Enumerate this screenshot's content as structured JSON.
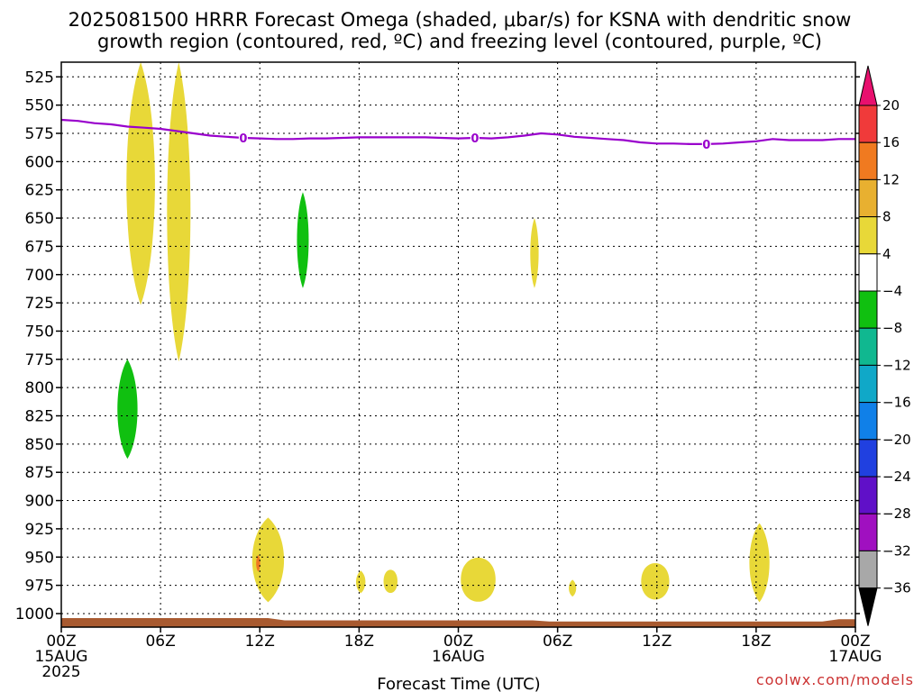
{
  "chart_data": {
    "type": "heatmap",
    "title_line1": "2025081500 HRRR Forecast Omega (shaded, μbar/s) for KSNA with dendritic snow",
    "title_line2": "growth region (contoured, red, ºC) and freezing level (contoured, purple, ºC)",
    "xlabel": "Forecast Time (UTC)",
    "credit": "coolwx.com/models",
    "y_axis": {
      "reversed": true,
      "ylim": [
        1012,
        512
      ],
      "ticks": [
        525,
        550,
        575,
        600,
        625,
        650,
        675,
        700,
        725,
        750,
        775,
        800,
        825,
        850,
        875,
        900,
        925,
        950,
        975,
        1000
      ]
    },
    "x_axis": {
      "xlim": [
        0,
        48
      ],
      "ticks": [
        {
          "hour": 0,
          "line1": "00Z",
          "line2": "15AUG",
          "line3": "2025"
        },
        {
          "hour": 6,
          "line1": "06Z",
          "line2": "",
          "line3": ""
        },
        {
          "hour": 12,
          "line1": "12Z",
          "line2": "",
          "line3": ""
        },
        {
          "hour": 18,
          "line1": "18Z",
          "line2": "",
          "line3": ""
        },
        {
          "hour": 24,
          "line1": "00Z",
          "line2": "16AUG",
          "line3": ""
        },
        {
          "hour": 30,
          "line1": "06Z",
          "line2": "",
          "line3": ""
        },
        {
          "hour": 36,
          "line1": "12Z",
          "line2": "",
          "line3": ""
        },
        {
          "hour": 42,
          "line1": "18Z",
          "line2": "",
          "line3": ""
        },
        {
          "hour": 48,
          "line1": "00Z",
          "line2": "17AUG",
          "line3": ""
        }
      ]
    },
    "grid": true,
    "colorbar": {
      "labels": [
        "20",
        "16",
        "12",
        "8",
        "4",
        "−4",
        "−8",
        "−12",
        "−16",
        "−20",
        "−24",
        "−28",
        "−32",
        "−36"
      ],
      "colors": [
        "#e8106e",
        "#f03a3a",
        "#f07a20",
        "#e8b030",
        "#e8d838",
        "#ffffff",
        "#10c010",
        "#10b890",
        "#10a8c8",
        "#1080e8",
        "#2040e0",
        "#6010c8",
        "#a010c0",
        "#a8a8a8"
      ]
    },
    "freezing_level": {
      "color": "#9900cc",
      "label": "0",
      "points": [
        [
          0,
          563
        ],
        [
          1,
          564
        ],
        [
          2,
          566
        ],
        [
          3,
          567
        ],
        [
          4,
          569
        ],
        [
          5,
          570
        ],
        [
          6,
          571
        ],
        [
          7,
          573
        ],
        [
          8,
          575
        ],
        [
          9,
          577
        ],
        [
          10,
          578
        ],
        [
          11,
          579
        ],
        [
          12,
          579.5
        ],
        [
          13,
          580
        ],
        [
          14,
          580
        ],
        [
          15,
          579.5
        ],
        [
          16,
          579.5
        ],
        [
          17,
          579
        ],
        [
          18,
          578.5
        ],
        [
          19,
          578.5
        ],
        [
          20,
          578.5
        ],
        [
          21,
          578.5
        ],
        [
          22,
          578.5
        ],
        [
          23,
          579
        ],
        [
          24,
          579.5
        ],
        [
          25,
          579
        ],
        [
          26,
          579.5
        ],
        [
          27,
          578.5
        ],
        [
          28,
          577
        ],
        [
          29,
          575
        ],
        [
          30,
          576
        ],
        [
          31,
          578
        ],
        [
          32,
          579
        ],
        [
          33,
          580
        ],
        [
          34,
          581
        ],
        [
          35,
          583
        ],
        [
          36,
          584
        ],
        [
          37,
          584
        ],
        [
          38,
          584.5
        ],
        [
          39,
          584.5
        ],
        [
          40,
          584
        ],
        [
          41,
          583
        ],
        [
          42,
          582
        ],
        [
          43,
          580
        ],
        [
          44,
          581
        ],
        [
          45,
          581
        ],
        [
          46,
          581
        ],
        [
          47,
          580
        ],
        [
          48,
          580
        ]
      ],
      "label_hours": [
        11,
        25,
        39
      ]
    },
    "omega_regions": [
      {
        "sign": "positive",
        "level": "4 to 8",
        "color": "#e8d838",
        "center_hour": 4.8,
        "top_hpa": 512,
        "bottom_hpa": 727,
        "half_width_hours": 0.85
      },
      {
        "sign": "positive",
        "level": "4 to 8",
        "color": "#e8d838",
        "center_hour": 7.1,
        "top_hpa": 512,
        "bottom_hpa": 777,
        "half_width_hours": 0.7
      },
      {
        "sign": "negative",
        "level": "-4 to -8",
        "color": "#10c010",
        "center_hour": 4.0,
        "top_hpa": 775,
        "bottom_hpa": 863,
        "half_width_hours": 0.6
      },
      {
        "sign": "negative",
        "level": "-4 to -8",
        "color": "#10c010",
        "center_hour": 14.6,
        "top_hpa": 627,
        "bottom_hpa": 712,
        "half_width_hours": 0.35
      },
      {
        "sign": "positive",
        "level": "4 to 8",
        "color": "#e8d838",
        "center_hour": 28.6,
        "top_hpa": 650,
        "bottom_hpa": 712,
        "half_width_hours": 0.25
      },
      {
        "sign": "positive",
        "level": "4 to 8",
        "color": "#e8d838",
        "center_hour": 12.5,
        "top_hpa": 915,
        "bottom_hpa": 990,
        "half_width_hours": 0.95
      },
      {
        "sign": "positive",
        "level": "8 to 12",
        "color": "#f07a20",
        "center_hour": 11.9,
        "top_hpa": 948,
        "bottom_hpa": 963,
        "half_width_hours": 0.12
      },
      {
        "sign": "positive",
        "level": "4 to 8",
        "color": "#e8d838",
        "center_hour": 18.1,
        "top_hpa": 962,
        "bottom_hpa": 982,
        "half_width_hours": 0.28
      },
      {
        "sign": "positive",
        "level": "4 to 8",
        "color": "#e8d838",
        "center_hour": 19.9,
        "top_hpa": 961,
        "bottom_hpa": 982,
        "half_width_hours": 0.42
      },
      {
        "sign": "positive",
        "level": "4 to 8",
        "color": "#e8d838",
        "center_hour": 25.2,
        "top_hpa": 950,
        "bottom_hpa": 990,
        "half_width_hours": 1.05
      },
      {
        "sign": "positive",
        "level": "4 to 8",
        "color": "#e8d838",
        "center_hour": 30.9,
        "top_hpa": 970,
        "bottom_hpa": 985,
        "half_width_hours": 0.22
      },
      {
        "sign": "positive",
        "level": "4 to 8",
        "color": "#e8d838",
        "center_hour": 35.9,
        "top_hpa": 955,
        "bottom_hpa": 988,
        "half_width_hours": 0.85
      },
      {
        "sign": "positive",
        "level": "4 to 8",
        "color": "#e8d838",
        "center_hour": 42.2,
        "top_hpa": 920,
        "bottom_hpa": 990,
        "half_width_hours": 0.6
      }
    ],
    "surface": {
      "color": "#a85a30",
      "points": [
        [
          0,
          1004
        ],
        [
          12.5,
          1004
        ],
        [
          13.5,
          1006
        ],
        [
          28.5,
          1006
        ],
        [
          29.5,
          1007
        ],
        [
          46,
          1007
        ],
        [
          47,
          1005
        ],
        [
          48,
          1005
        ]
      ]
    }
  }
}
